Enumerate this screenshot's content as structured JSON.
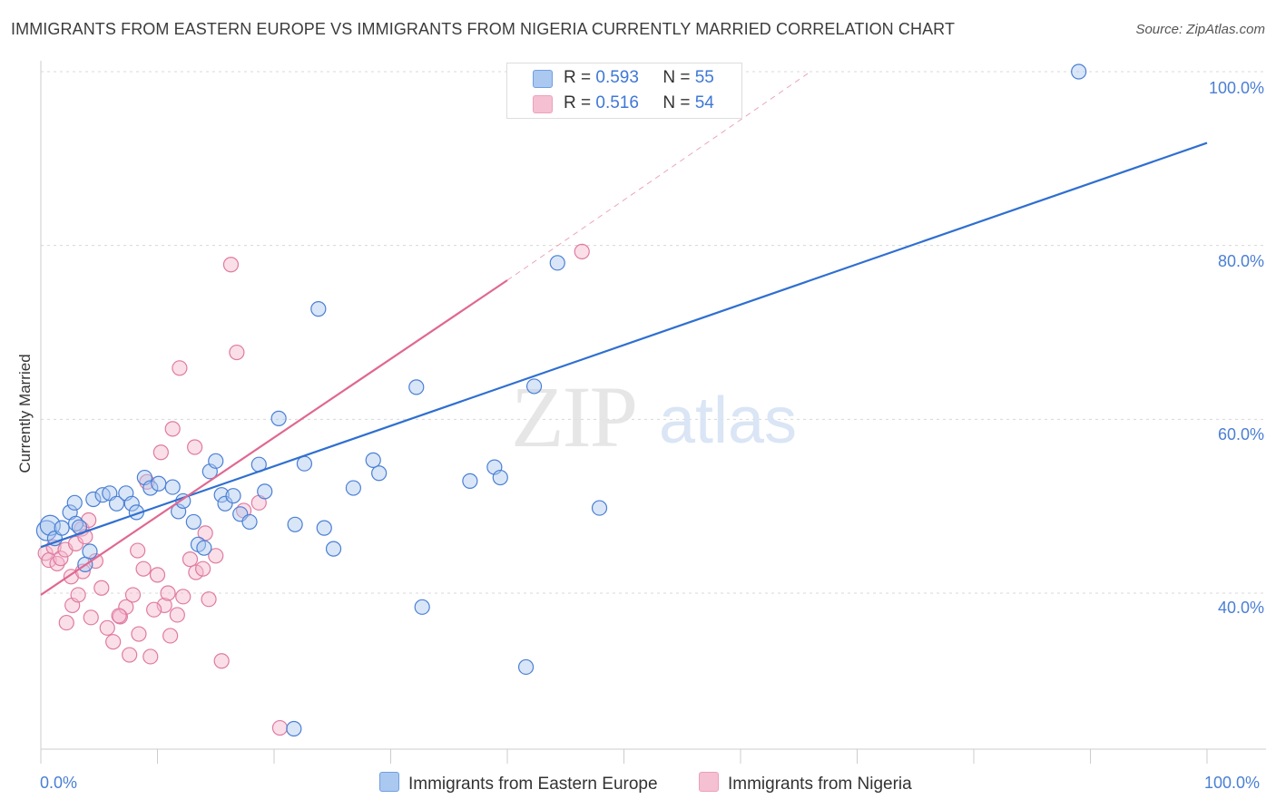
{
  "title": "IMMIGRANTS FROM EASTERN EUROPE VS IMMIGRANTS FROM NIGERIA CURRENTLY MARRIED CORRELATION CHART",
  "source": "Source: ZipAtlas.com",
  "watermark": {
    "zip": "ZIP",
    "atlas": "atlas"
  },
  "colors": {
    "blue": "#4a7fd4",
    "blue_fill": "#aac8f0",
    "blue_line": "#2f6fd0",
    "pink": "#e07aa0",
    "pink_fill": "#f5b8cc",
    "pink_line": "#e06890",
    "grid": "#d8d8d8"
  },
  "stats": {
    "blue": {
      "r_label": "R =",
      "r_value": "0.593",
      "n_label": "N =",
      "n_value": "55"
    },
    "pink": {
      "r_label": "R =",
      "r_value": "0.516",
      "n_label": "N =",
      "n_value": "54"
    }
  },
  "chart_data": {
    "type": "scatter",
    "title": "IMMIGRANTS FROM EASTERN EUROPE VS IMMIGRANTS FROM NIGERIA CURRENTLY MARRIED CORRELATION CHART",
    "xlabel": "",
    "ylabel": "Currently Married",
    "xlim": [
      0,
      100
    ],
    "ylim": [
      20,
      102
    ],
    "x_tick_labels": [
      "0.0%",
      "100.0%"
    ],
    "y_ticks": [
      40,
      60,
      80,
      100
    ],
    "y_tick_labels": [
      "40.0%",
      "60.0%",
      "80.0%",
      "100.0%"
    ],
    "legend_position": "bottom",
    "series": [
      {
        "name": "Immigrants from Eastern Europe",
        "color": "blue",
        "r": 0.593,
        "n": 55,
        "trend": {
          "x0": 0,
          "y0": 45.3,
          "x1": 100,
          "y1": 91.8
        },
        "points": [
          [
            0.5,
            47.2
          ],
          [
            0.8,
            47.8
          ],
          [
            1.2,
            46.3
          ],
          [
            1.8,
            47.5
          ],
          [
            2.5,
            49.3
          ],
          [
            3,
            48
          ],
          [
            3.3,
            47.6
          ],
          [
            3.8,
            43.3
          ],
          [
            4.2,
            44.8
          ],
          [
            2.9,
            50.4
          ],
          [
            4.5,
            50.8
          ],
          [
            5.3,
            51.3
          ],
          [
            5.9,
            51.5
          ],
          [
            6.5,
            50.3
          ],
          [
            7.3,
            51.5
          ],
          [
            7.8,
            50.3
          ],
          [
            8.2,
            49.3
          ],
          [
            8.9,
            53.3
          ],
          [
            9.4,
            52.1
          ],
          [
            10.1,
            52.6
          ],
          [
            11.3,
            52.2
          ],
          [
            11.8,
            49.4
          ],
          [
            12.2,
            50.6
          ],
          [
            13.1,
            48.2
          ],
          [
            13.5,
            45.6
          ],
          [
            14,
            45.2
          ],
          [
            14.5,
            54
          ],
          [
            15,
            55.2
          ],
          [
            15.5,
            51.3
          ],
          [
            15.8,
            50.3
          ],
          [
            16.5,
            51.2
          ],
          [
            17.1,
            49.1
          ],
          [
            17.9,
            48.2
          ],
          [
            18.7,
            54.8
          ],
          [
            19.2,
            51.7
          ],
          [
            20.4,
            60.1
          ],
          [
            21.7,
            24.4
          ],
          [
            21.8,
            47.9
          ],
          [
            22.6,
            54.9
          ],
          [
            23.8,
            72.7
          ],
          [
            24.3,
            47.5
          ],
          [
            25.1,
            45.1
          ],
          [
            26.8,
            52.1
          ],
          [
            28.5,
            55.3
          ],
          [
            29,
            53.8
          ],
          [
            32.7,
            38.4
          ],
          [
            32.2,
            63.7
          ],
          [
            36.8,
            52.9
          ],
          [
            38.9,
            54.5
          ],
          [
            39.4,
            53.3
          ],
          [
            41.6,
            31.5
          ],
          [
            42.3,
            63.8
          ],
          [
            44.3,
            78
          ],
          [
            47.9,
            49.8
          ],
          [
            89,
            100
          ]
        ]
      },
      {
        "name": "Immigrants from Nigeria",
        "color": "pink",
        "r": 0.516,
        "n": 54,
        "trend": {
          "x0": 0,
          "y0": 39.8,
          "x1": 40,
          "y1": 76
        },
        "trend_dash": {
          "x0": 40,
          "y0": 76,
          "x1": 66,
          "y1": 100
        },
        "points": [
          [
            0.4,
            44.6
          ],
          [
            0.7,
            43.8
          ],
          [
            1.1,
            45.3
          ],
          [
            1.4,
            43.4
          ],
          [
            1.7,
            44
          ],
          [
            2.1,
            45
          ],
          [
            2.6,
            41.9
          ],
          [
            3,
            45.7
          ],
          [
            3.5,
            47.4
          ],
          [
            3.8,
            46.5
          ],
          [
            4.3,
            37.2
          ],
          [
            2.2,
            36.6
          ],
          [
            2.7,
            38.6
          ],
          [
            3.2,
            39.8
          ],
          [
            3.6,
            42.5
          ],
          [
            4.1,
            48.4
          ],
          [
            4.7,
            43.7
          ],
          [
            5.2,
            40.6
          ],
          [
            5.7,
            36
          ],
          [
            6.2,
            34.4
          ],
          [
            6.8,
            37.3
          ],
          [
            7.3,
            38.4
          ],
          [
            7.9,
            39.8
          ],
          [
            8.3,
            44.9
          ],
          [
            8.8,
            42.8
          ],
          [
            9.4,
            32.7
          ],
          [
            10,
            42.1
          ],
          [
            10.6,
            38.6
          ],
          [
            11.1,
            35.1
          ],
          [
            11.7,
            37.5
          ],
          [
            12.2,
            39.6
          ],
          [
            12.8,
            43.9
          ],
          [
            13.3,
            42.4
          ],
          [
            13.9,
            42.8
          ],
          [
            14.4,
            39.3
          ],
          [
            15,
            44.3
          ],
          [
            15.5,
            32.2
          ],
          [
            9.1,
            52.8
          ],
          [
            10.3,
            56.2
          ],
          [
            11.3,
            58.9
          ],
          [
            11.9,
            65.9
          ],
          [
            13.2,
            56.8
          ],
          [
            14.1,
            46.9
          ],
          [
            6.7,
            37.4
          ],
          [
            7.6,
            32.9
          ],
          [
            8.4,
            35.3
          ],
          [
            9.7,
            38.1
          ],
          [
            10.9,
            40
          ],
          [
            17.4,
            49.5
          ],
          [
            18.7,
            50.4
          ],
          [
            16.3,
            77.8
          ],
          [
            16.8,
            67.7
          ],
          [
            20.5,
            24.5
          ],
          [
            46.4,
            79.3
          ]
        ]
      }
    ]
  },
  "legend": {
    "blue_label": "Immigrants from Eastern Europe",
    "pink_label": "Immigrants from Nigeria"
  }
}
